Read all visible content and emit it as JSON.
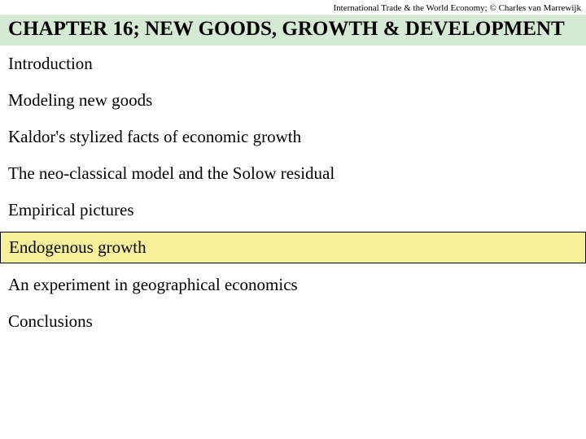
{
  "header": {
    "note": "International Trade & the World Economy;  © Charles van Marrewijk"
  },
  "chapter": {
    "title": "CHAPTER 16; NEW GOODS, GROWTH & DEVELOPMENT"
  },
  "topics": [
    {
      "label": "Introduction",
      "highlighted": false
    },
    {
      "label": "Modeling new goods",
      "highlighted": false
    },
    {
      "label": "Kaldor's stylized facts of economic growth",
      "highlighted": false
    },
    {
      "label": "The neo-classical model and the Solow residual",
      "highlighted": false
    },
    {
      "label": "Empirical pictures",
      "highlighted": false
    },
    {
      "label": "Endogenous growth",
      "highlighted": true
    },
    {
      "label": "An experiment in geographical economics",
      "highlighted": false
    },
    {
      "label": "Conclusions",
      "highlighted": false
    }
  ],
  "colors": {
    "chapter_bg": "#d5ead3",
    "highlight_bg": "#f7f09a",
    "highlight_border": "#000000",
    "page_bg": "#ffffff",
    "text": "#000000"
  },
  "typography": {
    "header_note_fontsize": 11,
    "chapter_title_fontsize": 25,
    "topic_fontsize": 21,
    "font_family": "Times New Roman"
  }
}
